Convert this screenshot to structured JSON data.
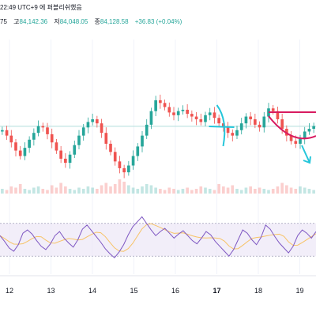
{
  "header": {
    "line1": "22:49 UTC+9  에 퍼블리쉬했음",
    "prefix": "75",
    "high_label": "고",
    "high": "84,142.36",
    "low_label": "저",
    "low": "84,048.05",
    "close_label": "종",
    "close": "84,128.58",
    "change": "+36.83 (+0.04%)"
  },
  "colors": {
    "up": "#26a69a",
    "down": "#ef5350",
    "rsi_line": "#7e57c2",
    "rsi_ma": "#f7c367",
    "rsi_band": "#ede7f6",
    "drawing_red": "#d81b60",
    "drawing_teal": "#26c6da",
    "grid": "#f0f3fa",
    "text": "#131722"
  },
  "chart_data": {
    "type": "candlestick",
    "x_tick_labels": [
      "12",
      "13",
      "14",
      "15",
      "16",
      "17",
      "18",
      "19"
    ],
    "bold_tick": "17",
    "price_level_line": 84128.58,
    "price_series": [
      84100,
      84060,
      84010,
      83950,
      83910,
      83970,
      84030,
      84080,
      84130,
      84120,
      84070,
      84010,
      83950,
      83890,
      83860,
      83920,
      83990,
      84060,
      84120,
      84160,
      84180,
      84150,
      84080,
      84000,
      83940,
      83870,
      83820,
      83790,
      83840,
      83910,
      83980,
      84060,
      84140,
      84240,
      84320,
      84300,
      84270,
      84230,
      84210,
      84240,
      84250,
      84220,
      84200,
      84180,
      84160,
      84210,
      84230,
      84190,
      84150,
      84120,
      84080,
      84060,
      84100,
      84150,
      84200,
      84180,
      84140,
      84120,
      84200,
      84260,
      84240,
      84180,
      84110,
      84060,
      84020,
      84000,
      84040,
      84090,
      84110,
      84130
    ],
    "volume_series": [
      4,
      3,
      6,
      5,
      8,
      4,
      3,
      5,
      6,
      4,
      3,
      7,
      5,
      9,
      6,
      4,
      3,
      5,
      4,
      6,
      5,
      4,
      7,
      9,
      6,
      8,
      12,
      10,
      7,
      5,
      4,
      6,
      8,
      7,
      5,
      4,
      3,
      5,
      4,
      3,
      4,
      5,
      3,
      4,
      6,
      5,
      4,
      3,
      8,
      6,
      5,
      7,
      4,
      3,
      5,
      6,
      4,
      5,
      4,
      3,
      4,
      6,
      9,
      7,
      5,
      4,
      6,
      5,
      4,
      3
    ],
    "rsi_series": [
      55,
      48,
      40,
      36,
      44,
      58,
      62,
      57,
      49,
      42,
      38,
      45,
      55,
      60,
      52,
      46,
      41,
      50,
      63,
      68,
      61,
      54,
      47,
      39,
      33,
      28,
      35,
      44,
      56,
      66,
      72,
      78,
      70,
      62,
      55,
      60,
      64,
      58,
      52,
      57,
      61,
      55,
      49,
      45,
      52,
      60,
      56,
      48,
      42,
      36,
      30,
      38,
      50,
      62,
      58,
      50,
      44,
      53,
      68,
      63,
      54,
      46,
      40,
      34,
      42,
      55,
      62,
      58,
      52,
      60
    ],
    "rsi_band": [
      30,
      70
    ]
  }
}
